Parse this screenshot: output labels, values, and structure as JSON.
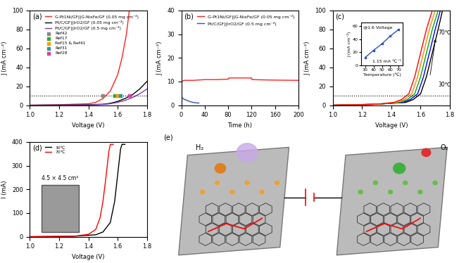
{
  "chart_data": [
    {
      "panel": "(a)",
      "type": "line",
      "xlabel": "Voltage (V)",
      "ylabel": "J (mA cm⁻²)",
      "xlim": [
        1.0,
        1.8
      ],
      "xticks": [
        1.0,
        1.2,
        1.4,
        1.6,
        1.8
      ],
      "ylim": [
        0,
        100
      ],
      "yticks": [
        0,
        20,
        40,
        60,
        80,
        100
      ],
      "hline": 10,
      "legend": "upper left",
      "series": [
        {
          "name": "G-Pt1Ni/GF||G-NixFe/GF (0.05 mg cm⁻²)",
          "color": "#ff2020",
          "line_style": "solid",
          "x": [
            1.0,
            1.2,
            1.4,
            1.45,
            1.5,
            1.55,
            1.6,
            1.63,
            1.66,
            1.68
          ],
          "values": [
            0,
            0.5,
            1.5,
            3,
            7,
            15,
            32,
            50,
            75,
            100
          ]
        },
        {
          "name": "Pt/C/GF||IrO2/GF (0.05 mg cm⁻²)",
          "color": "#000000",
          "line_style": "solid",
          "x": [
            1.0,
            1.4,
            1.5,
            1.55,
            1.6,
            1.65,
            1.7,
            1.75,
            1.8
          ],
          "values": [
            0,
            0.5,
            1,
            2,
            4,
            7,
            11,
            17,
            25
          ]
        },
        {
          "name": "Pt/C/GF||IrO2/GF (0.5 mg cm⁻²)",
          "color": "#7a3fb0",
          "line_style": "solid",
          "x": [
            1.0,
            1.4,
            1.5,
            1.55,
            1.6,
            1.65,
            1.7,
            1.75,
            1.8
          ],
          "values": [
            0,
            0.3,
            0.8,
            1.5,
            3,
            5,
            8,
            12,
            17
          ]
        },
        {
          "name": "Ref42",
          "type": "scatter",
          "marker": "s",
          "color": "#888888",
          "x": [
            1.5
          ],
          "values": [
            10
          ]
        },
        {
          "name": "Ref17",
          "type": "scatter",
          "marker": "s",
          "color": "#33aa33",
          "x": [
            1.58
          ],
          "values": [
            10
          ]
        },
        {
          "name": "Ref15 & Ref41",
          "type": "scatter",
          "marker": "s",
          "color": "#ff9900",
          "x": [
            1.6
          ],
          "values": [
            10
          ]
        },
        {
          "name": "Ref31",
          "type": "scatter",
          "marker": "s",
          "color": "#2a9d8f",
          "x": [
            1.62
          ],
          "values": [
            10
          ]
        },
        {
          "name": "Ref28",
          "type": "scatter",
          "marker": "s",
          "color": "#e040a0",
          "x": [
            1.68
          ],
          "values": [
            10
          ]
        }
      ]
    },
    {
      "panel": "(b)",
      "type": "line",
      "xlabel": "Time (h)",
      "ylabel": "J (mA cm⁻²)",
      "xlim": [
        0,
        200
      ],
      "xticks": [
        0,
        40,
        80,
        120,
        160,
        200
      ],
      "ylim": [
        0,
        40
      ],
      "yticks": [
        0,
        10,
        20,
        30,
        40
      ],
      "legend": "upper right",
      "series": [
        {
          "name": "G-Pt1Ni/GF||G-NixFe/GF (0.05 mg cm⁻²)",
          "color": "#ff2020",
          "line_style": "solid",
          "x": [
            0,
            5,
            20,
            40,
            60,
            80,
            81,
            120,
            121,
            160,
            200
          ],
          "values": [
            10,
            10.5,
            10.5,
            10.8,
            10.8,
            11,
            11.5,
            11.5,
            10.8,
            10.6,
            10.5
          ]
        },
        {
          "name": "Pt/C/GF||IrO2/GF (0.5 mg cm⁻²)",
          "color": "#3050c0",
          "line_style": "solid",
          "x": [
            0,
            2,
            5,
            10,
            15,
            20,
            25,
            30
          ],
          "values": [
            4,
            3,
            2.5,
            2,
            1.5,
            1.2,
            1,
            0.9
          ]
        }
      ]
    },
    {
      "panel": "(c)",
      "type": "line",
      "xlabel": "Voltage (V)",
      "ylabel": "J (mA cm⁻²)",
      "xlim": [
        1.0,
        1.8
      ],
      "xticks": [
        1.0,
        1.2,
        1.4,
        1.6,
        1.8
      ],
      "ylim": [
        0,
        100
      ],
      "yticks": [
        0,
        20,
        40,
        60,
        80,
        100
      ],
      "hline": 10,
      "annotations": [
        "70℃",
        "30℃"
      ],
      "series": [
        {
          "color": "#000000",
          "line_style": "solid",
          "x": [
            1.0,
            1.3,
            1.5,
            1.55,
            1.6,
            1.64,
            1.68,
            1.72,
            1.75
          ],
          "values": [
            0,
            1,
            3,
            6,
            12,
            30,
            55,
            80,
            100
          ]
        },
        {
          "color": "#0000ff",
          "line_style": "solid",
          "x": [
            1.0,
            1.3,
            1.48,
            1.53,
            1.58,
            1.62,
            1.66,
            1.7,
            1.735
          ],
          "values": [
            0,
            1,
            3,
            6,
            12,
            30,
            55,
            80,
            100
          ]
        },
        {
          "color": "#00aa00",
          "line_style": "solid",
          "x": [
            1.0,
            1.3,
            1.46,
            1.51,
            1.56,
            1.6,
            1.64,
            1.68,
            1.72
          ],
          "values": [
            0,
            1,
            3,
            6,
            12,
            30,
            55,
            80,
            100
          ]
        },
        {
          "color": "#ff8800",
          "line_style": "solid",
          "x": [
            1.0,
            1.3,
            1.44,
            1.49,
            1.54,
            1.58,
            1.62,
            1.66,
            1.7
          ],
          "values": [
            0,
            1,
            3,
            6,
            12,
            30,
            55,
            80,
            100
          ]
        },
        {
          "color": "#ff0000",
          "line_style": "solid",
          "x": [
            1.0,
            1.3,
            1.42,
            1.47,
            1.52,
            1.56,
            1.6,
            1.64,
            1.68
          ],
          "values": [
            0,
            1,
            3,
            6,
            12,
            30,
            55,
            80,
            100
          ]
        }
      ],
      "inset": {
        "type": "line",
        "title": "@1.6 Voltage",
        "annotation": "1.15 mA ℃⁻¹",
        "xlabel": "Temperature (℃)",
        "ylabel": "J (mA cm⁻²)",
        "xlim": [
          25,
          75
        ],
        "xticks": [
          30,
          40,
          50,
          60,
          70
        ],
        "ylim": [
          0,
          65
        ],
        "yticks": [
          0,
          20,
          40,
          60
        ],
        "series": [
          {
            "color": "#3050c0",
            "line_style": "solid",
            "marker": "s",
            "x": [
              30,
              40,
              50,
              60,
              70
            ],
            "values": [
              12,
              23,
              33,
              45,
              55
            ]
          }
        ]
      }
    },
    {
      "panel": "(d)",
      "type": "line",
      "xlabel": "Voltage (V)",
      "ylabel": "I (mA)",
      "xlim": [
        1.0,
        1.8
      ],
      "xticks": [
        1.0,
        1.2,
        1.4,
        1.6,
        1.8
      ],
      "ylim": [
        0,
        400
      ],
      "yticks": [
        0,
        100,
        200,
        300,
        400
      ],
      "legend": "upper left",
      "annotations": [
        "4.5 × 4.5 cm²"
      ],
      "series": [
        {
          "name": "30℃",
          "color": "#000000",
          "line_style": "solid",
          "x": [
            1.0,
            1.3,
            1.45,
            1.5,
            1.55,
            1.58,
            1.6,
            1.62,
            1.63,
            1.65
          ],
          "values": [
            0,
            2,
            8,
            20,
            60,
            150,
            260,
            370,
            390,
            390
          ]
        },
        {
          "name": "70℃",
          "color": "#ff0000",
          "line_style": "solid",
          "x": [
            1.0,
            1.3,
            1.4,
            1.45,
            1.48,
            1.5,
            1.52,
            1.54,
            1.55,
            1.57
          ],
          "values": [
            0,
            2,
            10,
            30,
            80,
            150,
            250,
            360,
            390,
            390
          ]
        }
      ]
    },
    {
      "panel": "(e)",
      "type": "diagram",
      "labels": [
        "H₂",
        "O₂"
      ]
    }
  ]
}
